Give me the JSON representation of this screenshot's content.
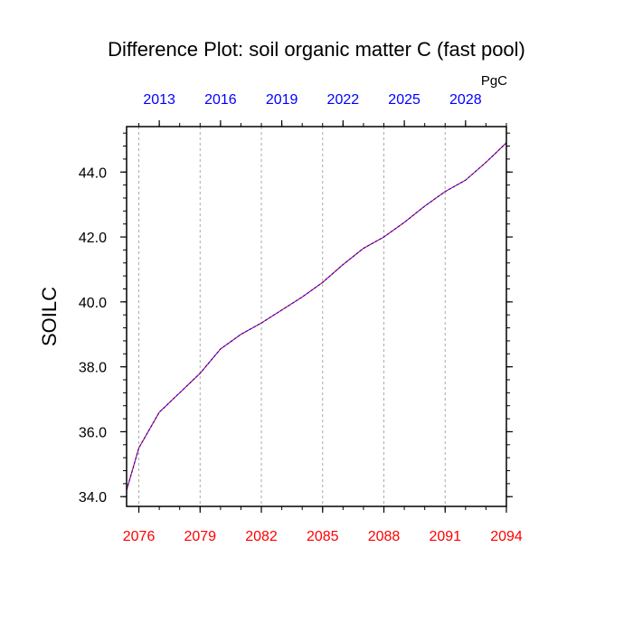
{
  "chart_data": {
    "type": "line",
    "title": "Difference Plot: soil organic matter C (fast pool)",
    "units": "PgC",
    "ylabel": "SOILC",
    "xlabel": "",
    "colors": {
      "bottom_axis": "#ff0000",
      "top_axis": "#0000ff",
      "series_a": "#ff0000",
      "series_b": "#0000ff",
      "grid": "#aaaaaa"
    },
    "grid": "vertical dashed",
    "bottom_axis": {
      "xlim": [
        2075.4,
        2094
      ],
      "ticks": [
        "2076",
        "2079",
        "2082",
        "2085",
        "2088",
        "2091",
        "2094"
      ],
      "tick_values": [
        2076,
        2079,
        2082,
        2085,
        2088,
        2091,
        2094
      ]
    },
    "top_axis": {
      "xlim": [
        2011.4,
        2030
      ],
      "ticks": [
        "2013",
        "2016",
        "2019",
        "2022",
        "2025",
        "2028"
      ],
      "tick_values": [
        2013,
        2016,
        2019,
        2022,
        2025,
        2028
      ]
    },
    "y_axis": {
      "ylim": [
        33.7,
        45.4
      ],
      "ticks": [
        "34.0",
        "36.0",
        "38.0",
        "40.0",
        "42.0",
        "44.0"
      ],
      "tick_values": [
        34,
        36,
        38,
        40,
        42,
        44
      ]
    },
    "x": [
      2075.4,
      2076.0,
      2077.0,
      2078.0,
      2079.0,
      2080.0,
      2081.0,
      2082.0,
      2083.0,
      2084.0,
      2085.0,
      2086.0,
      2087.0,
      2088.0,
      2089.0,
      2090.0,
      2091.0,
      2092.0,
      2093.0,
      2094.0
    ],
    "series": [
      {
        "values": [
          34.2,
          35.5,
          36.6,
          37.2,
          37.8,
          38.55,
          39.0,
          39.35,
          39.75,
          40.15,
          40.6,
          41.15,
          41.65,
          42.0,
          42.45,
          42.95,
          43.4,
          43.75,
          44.3,
          44.9
        ]
      },
      {
        "values": [
          34.2,
          35.5,
          36.6,
          37.2,
          37.8,
          38.55,
          39.0,
          39.35,
          39.75,
          40.15,
          40.6,
          41.15,
          41.65,
          42.0,
          42.45,
          42.95,
          43.4,
          43.75,
          44.3,
          44.9
        ]
      }
    ]
  }
}
